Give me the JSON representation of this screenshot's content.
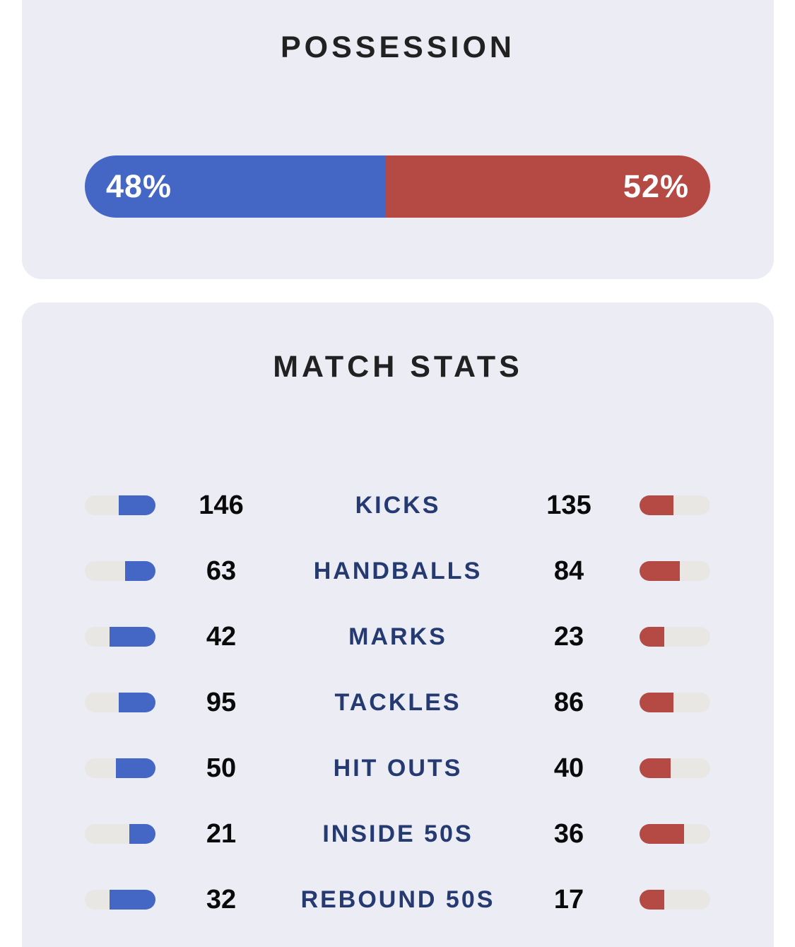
{
  "colors": {
    "home_accent": "#4466C4",
    "away_accent": "#B54A44",
    "bar_track": "#E9E7E3",
    "card_background": "#ECECF5",
    "label_navy": "#243A70",
    "title_dark": "#212121",
    "number_black": "#0A0A0A",
    "page_background": "#FFFFFF",
    "percent_text": "#FFFFFF"
  },
  "possession": {
    "title": "POSSESSION",
    "home_pct": 48,
    "away_pct": 52,
    "home_label": "48%",
    "away_label": "52%"
  },
  "match_stats": {
    "title": "MATCH STATS",
    "rows": [
      {
        "label": "KICKS",
        "home": 146,
        "away": 135
      },
      {
        "label": "HANDBALLS",
        "home": 63,
        "away": 84
      },
      {
        "label": "MARKS",
        "home": 42,
        "away": 23
      },
      {
        "label": "TACKLES",
        "home": 95,
        "away": 86
      },
      {
        "label": "HIT OUTS",
        "home": 50,
        "away": 40
      },
      {
        "label": "INSIDE 50S",
        "home": 21,
        "away": 36
      },
      {
        "label": "REBOUND 50S",
        "home": 32,
        "away": 17
      }
    ]
  }
}
